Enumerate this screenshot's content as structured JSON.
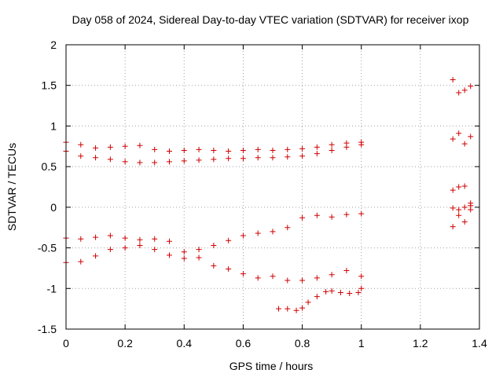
{
  "chart_data": {
    "type": "scatter",
    "title": "Day 058 of 2024, Sidereal Day-to-day VTEC variation (SDTVAR) for receiver ixop",
    "xlabel": "GPS time / hours",
    "ylabel": "SDTVAR / TECUs",
    "xlim": [
      0,
      1.4
    ],
    "ylim": [
      -1.5,
      2
    ],
    "xticks": [
      0,
      0.2,
      0.4,
      0.6,
      0.8,
      1,
      1.2,
      1.4
    ],
    "xtick_labels": [
      "0",
      "0.2",
      "0.4",
      "0.6",
      "0.8",
      "1",
      "1.2",
      "1.4"
    ],
    "yticks": [
      -1.5,
      -1,
      -0.5,
      0,
      0.5,
      1,
      1.5,
      2
    ],
    "ytick_labels": [
      "-1.5",
      "-1",
      "-0.5",
      "0",
      "0.5",
      "1",
      "1.5",
      "2"
    ],
    "grid": true,
    "marker": "+",
    "color": "#d00000",
    "series": [
      {
        "name": "series-1",
        "x": [
          0,
          0.05,
          0.1,
          0.15,
          0.2,
          0.25,
          0.3,
          0.35,
          0.4,
          0.45,
          0.5,
          0.55,
          0.6,
          0.65,
          0.7,
          0.75,
          0.8,
          0.85,
          0.9,
          0.95,
          1.0,
          1.31,
          1.33,
          1.35,
          1.37
        ],
        "y": [
          0.8,
          0.77,
          0.73,
          0.74,
          0.75,
          0.76,
          0.71,
          0.69,
          0.7,
          0.71,
          0.7,
          0.69,
          0.7,
          0.71,
          0.7,
          0.71,
          0.72,
          0.74,
          0.77,
          0.79,
          0.8,
          0.84,
          0.91,
          0.78,
          0.87
        ]
      },
      {
        "name": "series-2",
        "x": [
          0,
          0.05,
          0.1,
          0.15,
          0.2,
          0.25,
          0.3,
          0.35,
          0.4,
          0.45,
          0.5,
          0.55,
          0.6,
          0.65,
          0.7,
          0.75,
          0.8,
          0.85,
          0.9,
          0.95,
          1.0,
          1.31,
          1.33,
          1.35,
          1.37
        ],
        "y": [
          0.69,
          0.63,
          0.61,
          0.59,
          0.56,
          0.55,
          0.55,
          0.56,
          0.57,
          0.58,
          0.59,
          0.6,
          0.6,
          0.61,
          0.61,
          0.62,
          0.63,
          0.66,
          0.7,
          0.74,
          0.77,
          1.57,
          1.41,
          1.44,
          1.49
        ]
      },
      {
        "name": "series-3",
        "x": [
          0,
          0.05,
          0.1,
          0.15,
          0.2,
          0.25,
          0.3,
          0.35,
          0.4,
          0.45,
          0.5,
          0.55,
          0.6,
          0.65,
          0.7,
          0.75,
          0.8,
          0.85,
          0.9,
          0.95,
          1.0,
          1.31,
          1.33,
          1.35,
          1.37
        ],
        "y": [
          -0.38,
          -0.39,
          -0.37,
          -0.35,
          -0.38,
          -0.4,
          -0.39,
          -0.42,
          -0.55,
          -0.52,
          -0.47,
          -0.41,
          -0.35,
          -0.32,
          -0.3,
          -0.25,
          -0.13,
          -0.1,
          -0.12,
          -0.09,
          -0.08,
          0.21,
          0.25,
          0.26,
          0.05
        ]
      },
      {
        "name": "series-4",
        "x": [
          0,
          0.05,
          0.1,
          0.15,
          0.2,
          0.25,
          0.3,
          0.35,
          0.4,
          0.45,
          0.5,
          0.55,
          0.6,
          0.65,
          0.7,
          0.75,
          0.8,
          0.85,
          0.9,
          0.95,
          1.0,
          1.31,
          1.33,
          1.35,
          1.37
        ],
        "y": [
          -0.68,
          -0.67,
          -0.6,
          -0.52,
          -0.5,
          -0.47,
          -0.52,
          -0.59,
          -0.63,
          -0.62,
          -0.72,
          -0.76,
          -0.82,
          -0.87,
          -0.85,
          -0.9,
          -0.9,
          -0.87,
          -0.83,
          -0.78,
          -0.85,
          -0.01,
          -0.03,
          0.0,
          0.02
        ]
      },
      {
        "name": "series-5",
        "x": [
          0.72,
          0.75,
          0.78,
          0.8,
          0.82,
          0.85,
          0.88,
          0.9,
          0.93,
          0.96,
          0.99,
          1.0,
          1.31,
          1.33,
          1.35,
          1.37
        ],
        "y": [
          -1.25,
          -1.25,
          -1.27,
          -1.24,
          -1.17,
          -1.1,
          -1.04,
          -1.03,
          -1.05,
          -1.06,
          -1.05,
          -1.0,
          -0.24,
          -0.1,
          -0.18,
          -0.03
        ]
      }
    ]
  }
}
